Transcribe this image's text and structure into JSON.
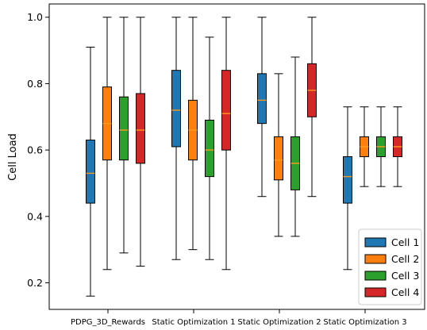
{
  "chart_data": {
    "type": "box",
    "ylabel": "Cell Load",
    "ylim": [
      0.12,
      1.04
    ],
    "yticks": [
      0.2,
      0.4,
      0.6,
      0.8,
      1.0
    ],
    "ytick_labels": [
      "0.2",
      "0.4",
      "0.6",
      "0.8",
      "1.0"
    ],
    "categories": [
      "PDPG_3D_Rewards",
      "Static Optimization 1",
      "Static Optimization 2",
      "Static Optimization 3"
    ],
    "legend_position": "lower-right",
    "series": [
      {
        "name": "Cell 1",
        "color": "#1f77b4",
        "boxes": [
          {
            "min": 0.16,
            "q1": 0.44,
            "median": 0.53,
            "q3": 0.63,
            "max": 0.91
          },
          {
            "min": 0.27,
            "q1": 0.61,
            "median": 0.72,
            "q3": 0.84,
            "max": 1.0
          },
          {
            "min": 0.46,
            "q1": 0.68,
            "median": 0.75,
            "q3": 0.83,
            "max": 1.0
          },
          {
            "min": 0.24,
            "q1": 0.44,
            "median": 0.52,
            "q3": 0.58,
            "max": 0.73
          }
        ]
      },
      {
        "name": "Cell 2",
        "color": "#ff7f0e",
        "boxes": [
          {
            "min": 0.24,
            "q1": 0.57,
            "median": 0.68,
            "q3": 0.79,
            "max": 1.0
          },
          {
            "min": 0.3,
            "q1": 0.57,
            "median": 0.66,
            "q3": 0.75,
            "max": 1.0
          },
          {
            "min": 0.34,
            "q1": 0.51,
            "median": 0.57,
            "q3": 0.64,
            "max": 0.83
          },
          {
            "min": 0.49,
            "q1": 0.58,
            "median": 0.61,
            "q3": 0.64,
            "max": 0.73
          }
        ]
      },
      {
        "name": "Cell 3",
        "color": "#2ca02c",
        "boxes": [
          {
            "min": 0.29,
            "q1": 0.57,
            "median": 0.66,
            "q3": 0.76,
            "max": 1.0
          },
          {
            "min": 0.27,
            "q1": 0.52,
            "median": 0.6,
            "q3": 0.69,
            "max": 0.94
          },
          {
            "min": 0.34,
            "q1": 0.48,
            "median": 0.56,
            "q3": 0.64,
            "max": 0.88
          },
          {
            "min": 0.49,
            "q1": 0.58,
            "median": 0.61,
            "q3": 0.64,
            "max": 0.73
          }
        ]
      },
      {
        "name": "Cell 4",
        "color": "#d62728",
        "boxes": [
          {
            "min": 0.25,
            "q1": 0.56,
            "median": 0.66,
            "q3": 0.77,
            "max": 1.0
          },
          {
            "min": 0.24,
            "q1": 0.6,
            "median": 0.71,
            "q3": 0.84,
            "max": 1.0
          },
          {
            "min": 0.46,
            "q1": 0.7,
            "median": 0.78,
            "q3": 0.86,
            "max": 1.0
          },
          {
            "min": 0.49,
            "q1": 0.58,
            "median": 0.61,
            "q3": 0.64,
            "max": 0.73
          }
        ]
      }
    ]
  }
}
